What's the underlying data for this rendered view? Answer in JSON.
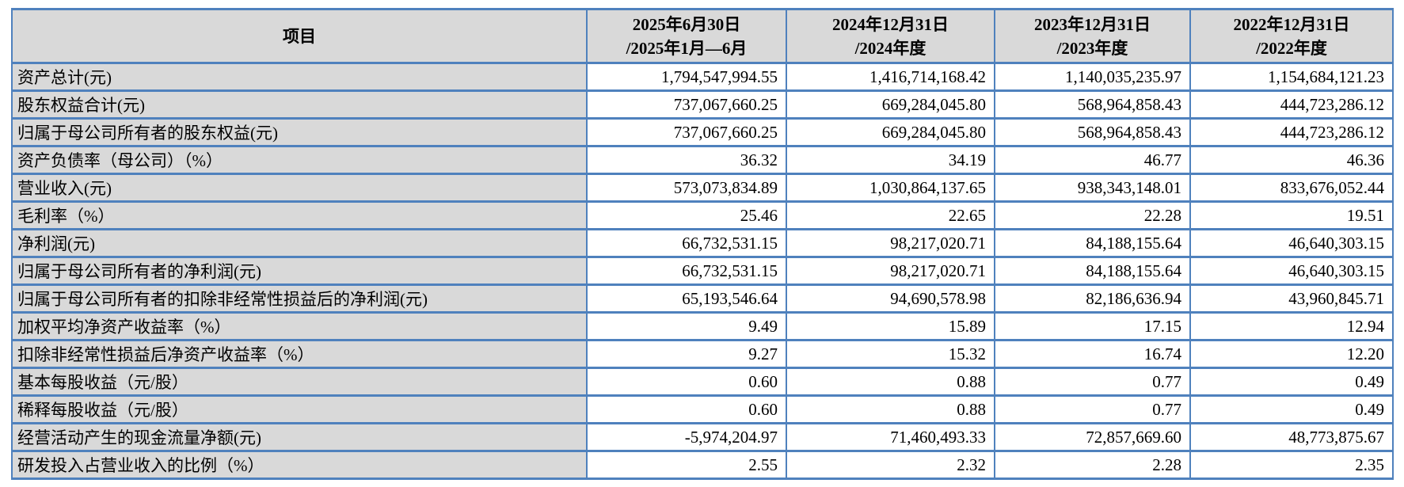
{
  "colors": {
    "border": "#4F81BD",
    "header_bg": "#D9D9D9",
    "label_bg": "#D9D9D9",
    "cell_bg": "#FFFFFF"
  },
  "table": {
    "header": {
      "item_label": "项目",
      "columns": [
        {
          "line1": "2025年6月30日",
          "line2": "/2025年1月—6月"
        },
        {
          "line1": "2024年12月31日",
          "line2": "/2024年度"
        },
        {
          "line1": "2023年12月31日",
          "line2": "/2023年度"
        },
        {
          "line1": "2022年12月31日",
          "line2": "/2022年度"
        }
      ]
    },
    "rows": [
      {
        "label": "资产总计(元)",
        "values": [
          "1,794,547,994.55",
          "1,416,714,168.42",
          "1,140,035,235.97",
          "1,154,684,121.23"
        ]
      },
      {
        "label": "股东权益合计(元)",
        "values": [
          "737,067,660.25",
          "669,284,045.80",
          "568,964,858.43",
          "444,723,286.12"
        ]
      },
      {
        "label": "归属于母公司所有者的股东权益(元)",
        "values": [
          "737,067,660.25",
          "669,284,045.80",
          "568,964,858.43",
          "444,723,286.12"
        ]
      },
      {
        "label": "资产负债率（母公司）（%）",
        "values": [
          "36.32",
          "34.19",
          "46.77",
          "46.36"
        ]
      },
      {
        "label": "营业收入(元)",
        "values": [
          "573,073,834.89",
          "1,030,864,137.65",
          "938,343,148.01",
          "833,676,052.44"
        ]
      },
      {
        "label": "毛利率（%）",
        "values": [
          "25.46",
          "22.65",
          "22.28",
          "19.51"
        ]
      },
      {
        "label": "净利润(元)",
        "values": [
          "66,732,531.15",
          "98,217,020.71",
          "84,188,155.64",
          "46,640,303.15"
        ]
      },
      {
        "label": "归属于母公司所有者的净利润(元)",
        "values": [
          "66,732,531.15",
          "98,217,020.71",
          "84,188,155.64",
          "46,640,303.15"
        ]
      },
      {
        "label": "归属于母公司所有者的扣除非经常性损益后的净利润(元)",
        "values": [
          "65,193,546.64",
          "94,690,578.98",
          "82,186,636.94",
          "43,960,845.71"
        ]
      },
      {
        "label": "加权平均净资产收益率（%）",
        "values": [
          "9.49",
          "15.89",
          "17.15",
          "12.94"
        ]
      },
      {
        "label": "扣除非经常性损益后净资产收益率（%）",
        "values": [
          "9.27",
          "15.32",
          "16.74",
          "12.20"
        ]
      },
      {
        "label": "基本每股收益（元/股）",
        "values": [
          "0.60",
          "0.88",
          "0.77",
          "0.49"
        ]
      },
      {
        "label": "稀释每股收益（元/股）",
        "values": [
          "0.60",
          "0.88",
          "0.77",
          "0.49"
        ]
      },
      {
        "label": "经营活动产生的现金流量净额(元)",
        "values": [
          "-5,974,204.97",
          "71,460,493.33",
          "72,857,669.60",
          "48,773,875.67"
        ]
      },
      {
        "label": "研发投入占营业收入的比例（%）",
        "values": [
          "2.55",
          "2.32",
          "2.28",
          "2.35"
        ]
      }
    ]
  }
}
